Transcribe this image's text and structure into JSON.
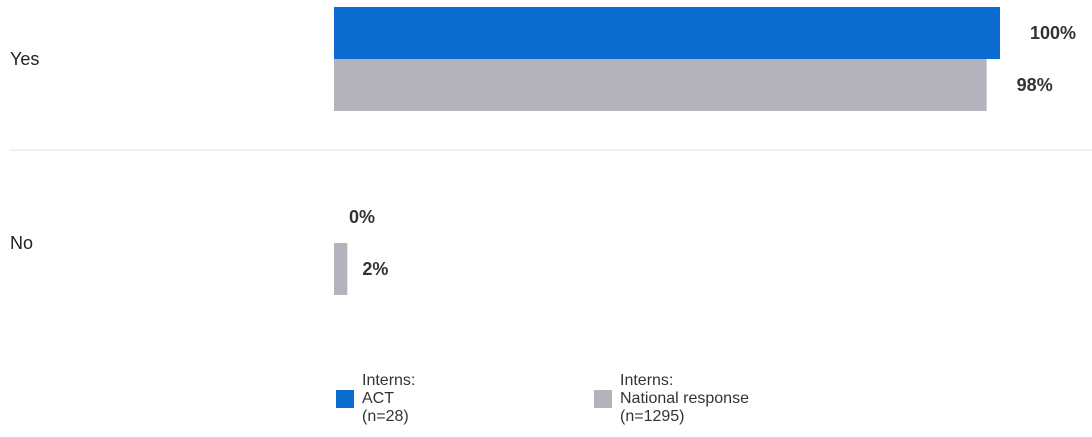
{
  "chart_data": {
    "type": "bar",
    "orientation": "horizontal",
    "categories": [
      "Yes",
      "No"
    ],
    "series": [
      {
        "name": "Interns: ACT (n=28)",
        "values": [
          100,
          0
        ],
        "labels": [
          "100%",
          "0%"
        ],
        "color": "#0a6ccf"
      },
      {
        "name": "Interns: National response (n=1295)",
        "values": [
          98,
          2
        ],
        "labels": [
          "98%",
          "2%"
        ],
        "color": "#b3b3bd"
      }
    ],
    "xlim": [
      0,
      100
    ],
    "grid": false,
    "legend_position": "bottom"
  },
  "legend": [
    {
      "line1": "Interns:",
      "line2": "ACT",
      "line3": "(n=28)",
      "color": "#0a6ccf"
    },
    {
      "line1": "Interns:",
      "line2": "National response",
      "line3": "(n=1295)",
      "color": "#b3b3bd"
    }
  ]
}
